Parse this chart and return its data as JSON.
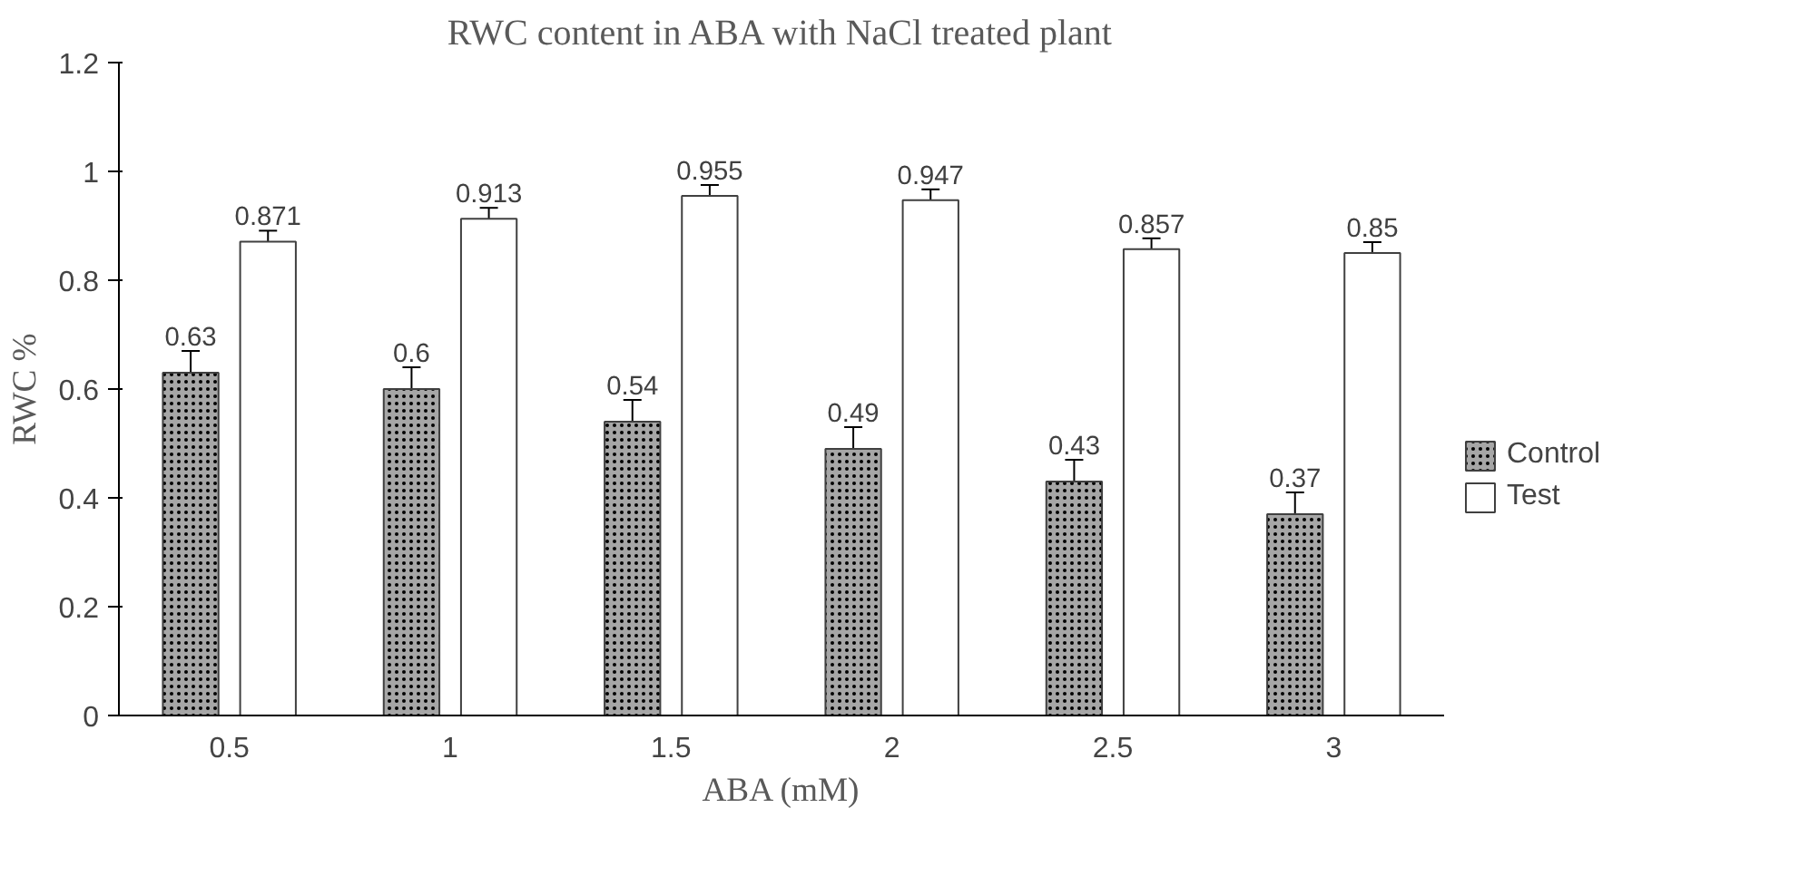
{
  "chart_data": {
    "type": "bar",
    "title": "RWC content in ABA with NaCl treated plant",
    "xlabel": "ABA (mM)",
    "ylabel": "RWC %",
    "categories": [
      "0.5",
      "1",
      "1.5",
      "2",
      "2.5",
      "3"
    ],
    "series": [
      {
        "name": "Control",
        "color": "#a6a6a6",
        "values": [
          0.63,
          0.6,
          0.54,
          0.49,
          0.43,
          0.37
        ],
        "errors": [
          0.04,
          0.04,
          0.04,
          0.04,
          0.04,
          0.04
        ]
      },
      {
        "name": "Test",
        "color": "#ffffff",
        "values": [
          0.871,
          0.913,
          0.955,
          0.947,
          0.857,
          0.85
        ],
        "errors": [
          0.02,
          0.02,
          0.02,
          0.02,
          0.02,
          0.02
        ]
      }
    ],
    "ylim": [
      0,
      1.2
    ],
    "yticks": [
      0,
      0.2,
      0.4,
      0.6,
      0.8,
      1,
      1.2
    ],
    "grid": false,
    "legend": "right",
    "data_labels": true
  }
}
